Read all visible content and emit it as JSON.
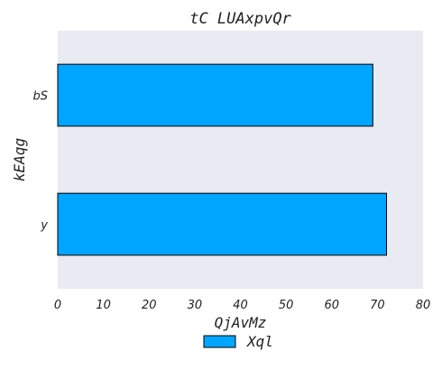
{
  "chart_data": {
    "type": "bar",
    "orientation": "horizontal",
    "title": "tC LUAxpvQr",
    "xlabel": "QjAvMz",
    "ylabel": "kEAqg",
    "categories": [
      "bS",
      "y"
    ],
    "series": [
      {
        "name": "Xql",
        "values": [
          69,
          72
        ],
        "color": "#00a5ff"
      }
    ],
    "xlim": [
      0,
      80
    ],
    "xticks": [
      0,
      10,
      20,
      30,
      40,
      50,
      60,
      70,
      80
    ],
    "grid": false,
    "legend_position": "bottom-center",
    "plot_background": "#eaeaf2"
  }
}
